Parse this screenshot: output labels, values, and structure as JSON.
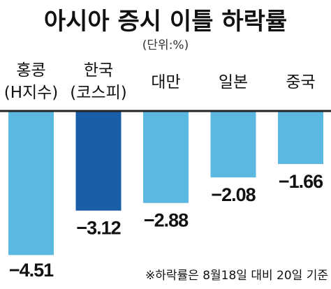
{
  "title": "아시아 증시 이틀 하락률",
  "unit": "(단위:%)",
  "note": "※하락률은 8월18일 대비 20일 기준",
  "colors": {
    "bar": "#5BB8E0",
    "highlight": "#1B5EA8",
    "baseline": "#222222"
  },
  "chart_data": {
    "type": "bar",
    "title": "아시아 증시 이틀 하락률",
    "ylabel": "",
    "xlabel": "",
    "categories": [
      [
        "홍콩",
        "(H지수)"
      ],
      [
        "한국",
        "(코스피)"
      ],
      [
        "대만"
      ],
      [
        "일본"
      ],
      [
        "중국"
      ]
    ],
    "values": [
      -4.51,
      -3.12,
      -2.88,
      -2.08,
      -1.66
    ],
    "labels": [
      "−4.51",
      "−3.12",
      "−2.88",
      "−2.08",
      "−1.66"
    ],
    "highlight_index": 1,
    "ylim": [
      -4.7,
      0
    ],
    "grid": false,
    "legend": "none"
  }
}
